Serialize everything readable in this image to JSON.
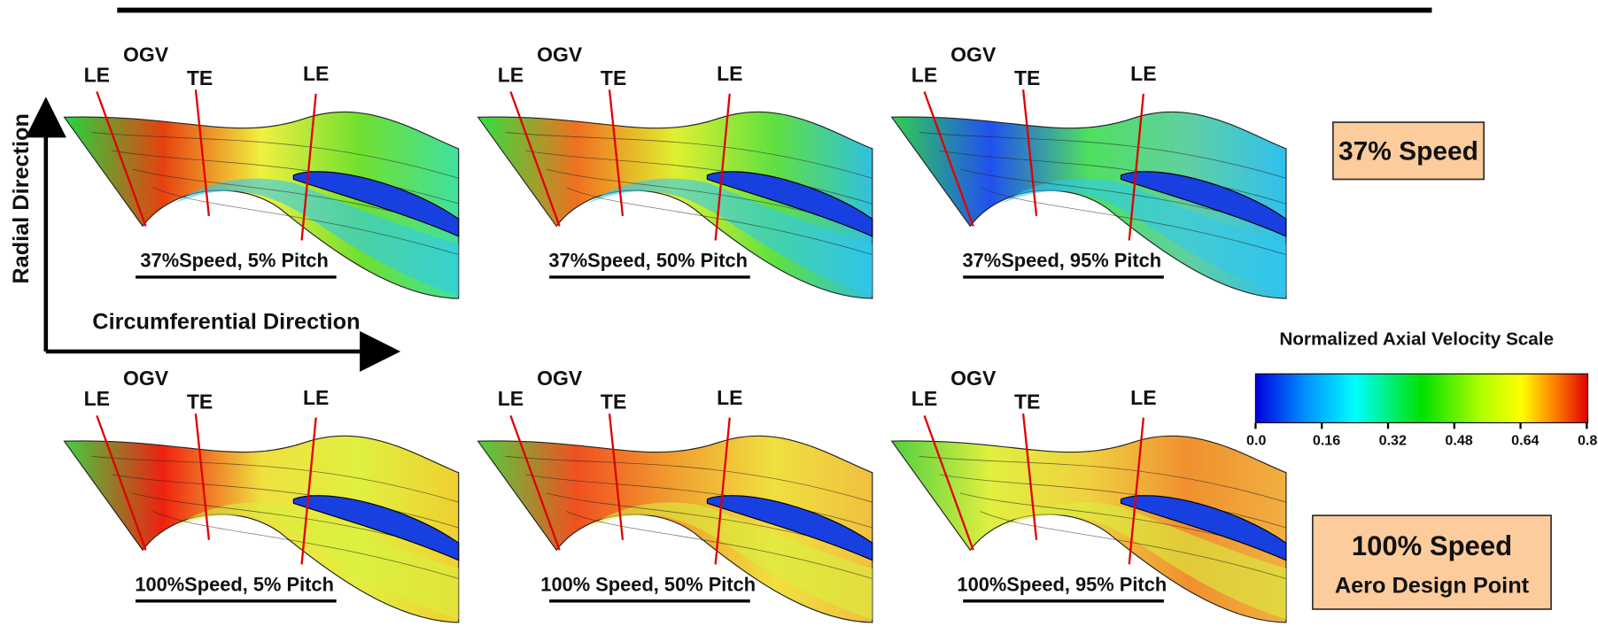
{
  "axes": {
    "y_label": "Radial Direction",
    "x_label": "Circumferential Direction"
  },
  "panels": [
    {
      "caption": "37%Speed, 5% Pitch",
      "labels": [
        "LE",
        "OGV",
        "TE",
        "LE"
      ]
    },
    {
      "caption": "37%Speed, 50% Pitch",
      "labels": [
        "LE",
        "OGV",
        "TE",
        "LE"
      ]
    },
    {
      "caption": "37%Speed, 95% Pitch",
      "labels": [
        "LE",
        "OGV",
        "TE",
        "LE"
      ]
    },
    {
      "caption": "100%Speed, 5% Pitch",
      "labels": [
        "LE",
        "OGV",
        "TE",
        "LE"
      ]
    },
    {
      "caption": "100% Speed, 50% Pitch",
      "labels": [
        "LE",
        "OGV",
        "TE",
        "LE"
      ]
    },
    {
      "caption": "100%Speed, 95% Pitch",
      "labels": [
        "LE",
        "OGV",
        "TE",
        "LE"
      ]
    }
  ],
  "speed_labels": [
    {
      "lines": [
        "37% Speed"
      ]
    },
    {
      "lines": [
        "100% Speed",
        "Aero Design Point"
      ]
    }
  ],
  "colorbar": {
    "title": "Normalized Axial Velocity Scale",
    "ticks": [
      "0.0",
      "0.16",
      "0.32",
      "0.48",
      "0.64",
      "0.8"
    ]
  }
}
